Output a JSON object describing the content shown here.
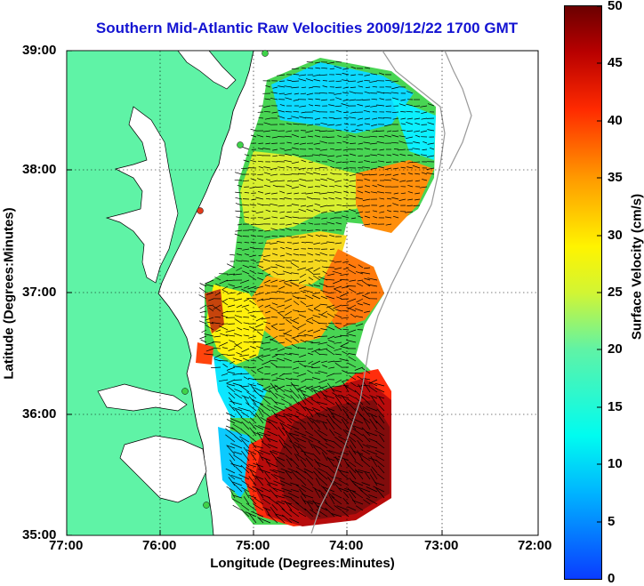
{
  "title": "Southern Mid-Atlantic Raw Velocities 2009/12/22 1700 GMT",
  "axes": {
    "xlabel": "Longitude (Degrees:Minutes)",
    "ylabel": "Latitude (Degrees:Minutes)",
    "xticks": [
      "77:00",
      "76:00",
      "75:00",
      "74:00",
      "73:00",
      "72:00"
    ],
    "yticks": [
      "39:00",
      "38:00",
      "37:00",
      "36:00",
      "35:00"
    ]
  },
  "colorbar": {
    "label": "Surface Velocity (cm/s)",
    "ticks": [
      "50",
      "45",
      "40",
      "35",
      "30",
      "25",
      "20",
      "15",
      "10",
      "5",
      "0"
    ],
    "range": [
      0,
      50
    ]
  },
  "colors": {
    "land": "#5ff3a6",
    "water": "#ffffff",
    "title": "#1414d2",
    "station": "#3fd34a",
    "station_alt": "#e23a1a"
  }
}
